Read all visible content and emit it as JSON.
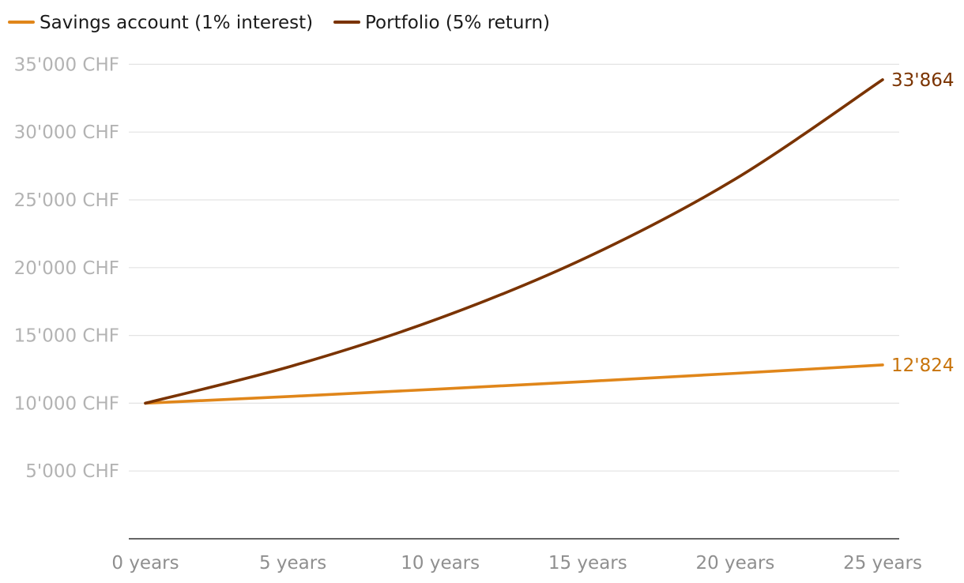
{
  "chart_data": {
    "type": "line",
    "x": [
      0,
      5,
      10,
      15,
      20,
      25
    ],
    "x_tick_labels": [
      "0 years",
      "5 years",
      "10 years",
      "15 years",
      "20 years",
      "25 years"
    ],
    "y_tick_values": [
      5000,
      10000,
      15000,
      20000,
      25000,
      30000,
      35000
    ],
    "y_tick_labels": [
      "5'000 CHF",
      "10'000 CHF",
      "15'000 CHF",
      "20'000 CHF",
      "25'000 CHF",
      "30'000 CHF",
      "35'000 CHF"
    ],
    "xlim": [
      0,
      25
    ],
    "ylim": [
      0,
      35000
    ],
    "grid": true,
    "legend_position": "top-left",
    "series": [
      {
        "name": "Savings account (1% interest)",
        "color": "#e0861a",
        "label_color": "#c8740c",
        "end_label": "12'824",
        "values": [
          10000,
          10510,
          11046,
          11610,
          12202,
          12824
        ]
      },
      {
        "name": "Portfolio (5% return)",
        "color": "#7a3300",
        "label_color": "#7a3300",
        "end_label": "33'864",
        "values": [
          10000,
          12763,
          16289,
          20789,
          26533,
          33864
        ]
      }
    ]
  }
}
